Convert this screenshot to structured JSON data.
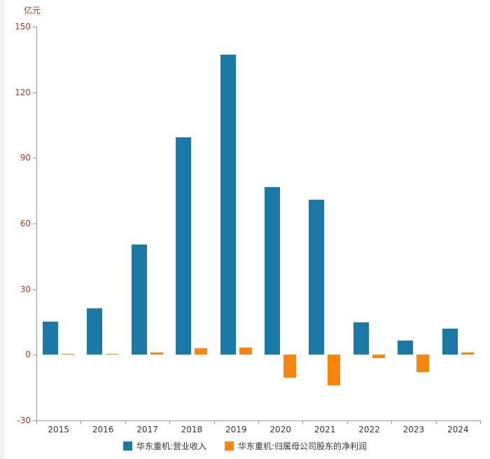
{
  "colors": {
    "revenue_bar": "#1b79a8",
    "profit_bar": "#f8860d",
    "y_label": "#a33c2a",
    "x_label": "#333333",
    "legend_text": "#333333",
    "axis_line": "#999999"
  },
  "chart_data": {
    "type": "bar",
    "title": "",
    "unit": "亿元",
    "categories": [
      "2015",
      "2016",
      "2017",
      "2018",
      "2019",
      "2020",
      "2021",
      "2022",
      "2023",
      "2024"
    ],
    "series": [
      {
        "name": "华东重机:营业收入",
        "values": [
          15.2,
          21.3,
          50.3,
          99.4,
          137.3,
          76.5,
          70.9,
          14.8,
          6.6,
          11.9
        ]
      },
      {
        "name": "华东重机:归属母公司股东的净利润",
        "values": [
          0.3,
          0.3,
          1.2,
          2.9,
          3.4,
          -10.6,
          -14.0,
          -1.5,
          -7.9,
          1.0
        ]
      }
    ],
    "ylabel": "亿元",
    "xlabel": "",
    "ylim": [
      -30,
      150
    ],
    "yticks": [
      -30,
      0,
      30,
      60,
      90,
      120,
      150
    ],
    "grid": false,
    "legend_position": "bottom"
  }
}
